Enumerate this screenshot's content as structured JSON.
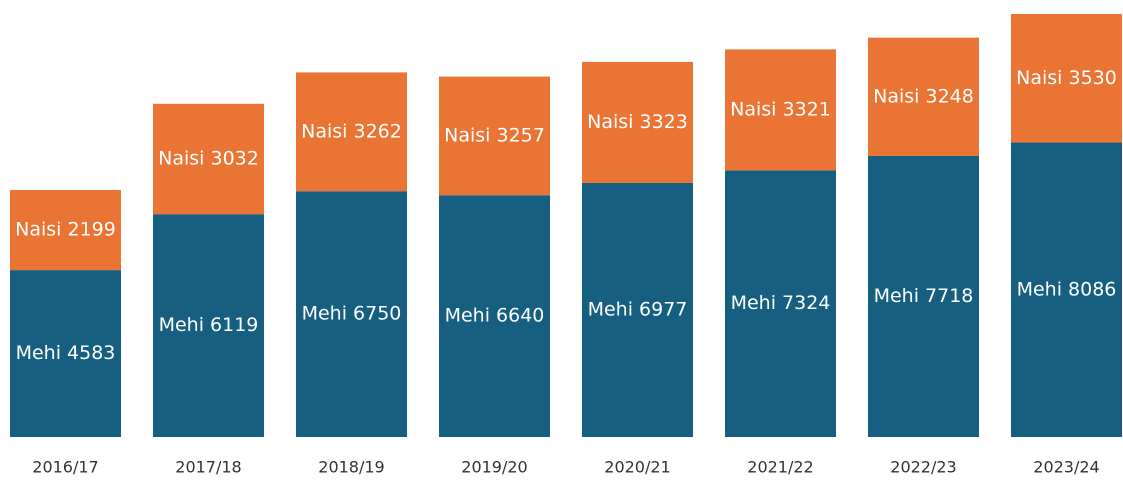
{
  "chart_data": {
    "type": "stacked_bar",
    "categories": [
      "2016/17",
      "2017/18",
      "2018/19",
      "2019/20",
      "2020/21",
      "2021/22",
      "2022/23",
      "2023/24"
    ],
    "series": [
      {
        "color": "#165f80",
        "values": [
          4583,
          6119,
          6750,
          6640,
          6977,
          7324,
          7718,
          8086
        ],
        "value_labels": [
          "Mehi 4583",
          "Mehi 6119",
          "Mehi 6750",
          "Mehi 6640",
          "Mehi 6977",
          "Mehi 7324",
          "Mehi 7718",
          "Mehi 8086"
        ]
      },
      {
        "color": "#ea7434",
        "values": [
          2199,
          3032,
          3262,
          3257,
          3323,
          3321,
          3248,
          3530
        ],
        "value_labels": [
          "Naisi 2199",
          "Naisi 3032",
          "Naisi 3262",
          "Naisi 3257",
          "Naisi 3323",
          "Naisi 3321",
          "Naisi 3248",
          "Naisi 3530"
        ]
      }
    ],
    "ylim": [
      0,
      11616
    ]
  }
}
